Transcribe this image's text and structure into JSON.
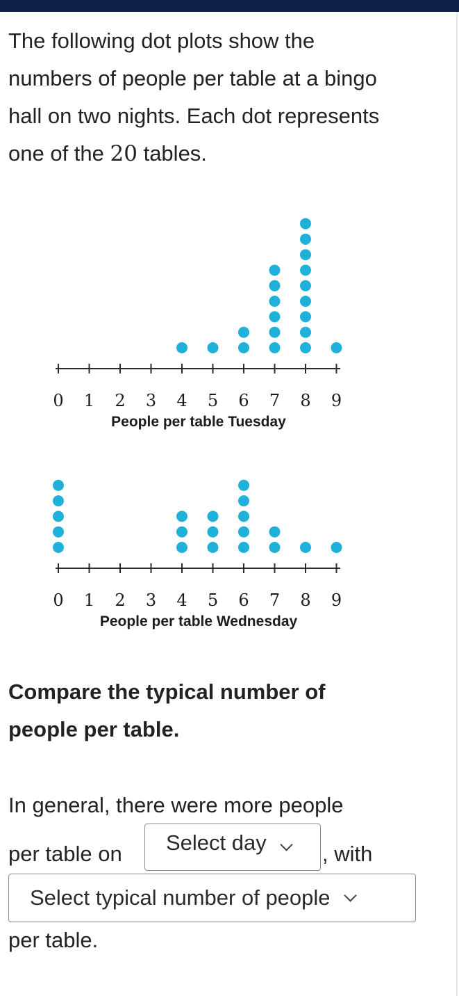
{
  "colors": {
    "topbar": "#0d2149",
    "dot": "#1fb1d9",
    "axis": "#2b2b2b"
  },
  "intro": {
    "before_number": "The following dot plots show the numbers of people per table at a bingo hall on two nights. Each dot represents one of the ",
    "number": "20",
    "after_number": " tables."
  },
  "chart_data": [
    {
      "type": "dot",
      "xlabel": "People per table Tuesday",
      "ticks": [
        0,
        1,
        2,
        3,
        4,
        5,
        6,
        7,
        8,
        9
      ],
      "counts": {
        "4": 1,
        "5": 1,
        "6": 2,
        "7": 6,
        "8": 9,
        "9": 1
      },
      "total": 20
    },
    {
      "type": "dot",
      "xlabel": "People per table Wednesday",
      "ticks": [
        0,
        1,
        2,
        3,
        4,
        5,
        6,
        7,
        8,
        9
      ],
      "counts": {
        "0": 5,
        "4": 3,
        "5": 3,
        "6": 5,
        "7": 2,
        "8": 1,
        "9": 1
      },
      "total": 20
    }
  ],
  "question": "Compare the typical number of people per table.",
  "answer": {
    "line1": "In general, there were more people",
    "before_day": "per table on",
    "day_placeholder": "Select day",
    "after_day": ", with",
    "number_placeholder": "Select typical number of people",
    "end": "per table."
  }
}
